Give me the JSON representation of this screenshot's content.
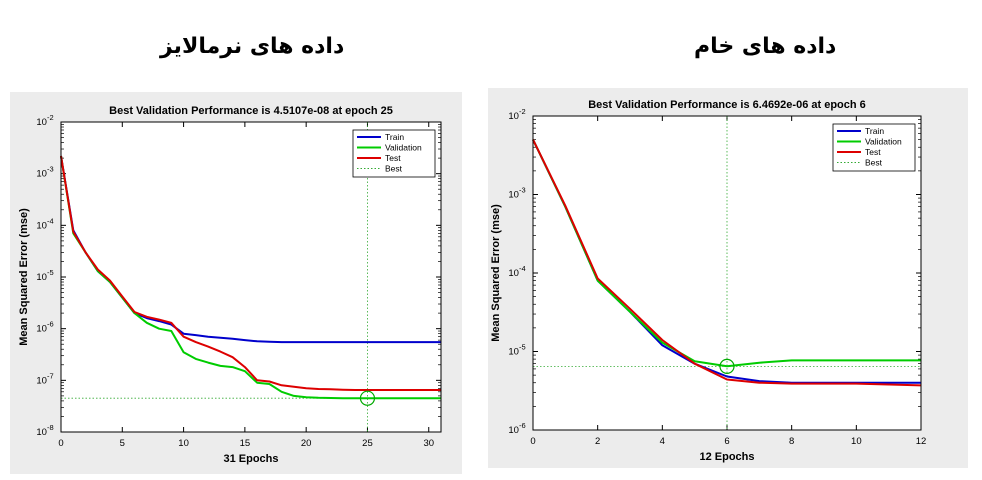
{
  "headings": {
    "left": "داده های نرمالایز",
    "right": "داده های خام"
  },
  "chart_data": [
    {
      "type": "line",
      "title": "Best Validation Performance is 4.5107e-08 at epoch 25",
      "xlabel": "31 Epochs",
      "ylabel": "Mean Squared Error  (mse)",
      "xlim": [
        0,
        31
      ],
      "xticks": [
        0,
        5,
        10,
        15,
        20,
        25,
        30
      ],
      "ylim": [
        1e-08,
        0.01
      ],
      "yscale": "log",
      "yticks": [
        {
          "value": 1e-08,
          "base": "10",
          "exp": "-8"
        },
        {
          "value": 1e-07,
          "base": "10",
          "exp": "-7"
        },
        {
          "value": 1e-06,
          "base": "10",
          "exp": "-6"
        },
        {
          "value": 1e-05,
          "base": "10",
          "exp": "-5"
        },
        {
          "value": 0.0001,
          "base": "10",
          "exp": "-4"
        },
        {
          "value": 0.001,
          "base": "10",
          "exp": "-3"
        },
        {
          "value": 0.01,
          "base": "10",
          "exp": "-2"
        }
      ],
      "legend_position": "top-right",
      "legend": [
        "Train",
        "Validation",
        "Test",
        "Best"
      ],
      "best": {
        "epoch": 25,
        "value": 4.5107e-08
      },
      "series": [
        {
          "name": "Train",
          "color": "#0000cc",
          "x": [
            0,
            1,
            2,
            3,
            4,
            5,
            6,
            7,
            8,
            9,
            10,
            11,
            12,
            13,
            14,
            15,
            16,
            17,
            18,
            19,
            20,
            21,
            22,
            23,
            24,
            25,
            26,
            27,
            28,
            29,
            30,
            31
          ],
          "y": [
            0.0022,
            8e-05,
            3e-05,
            1.3e-05,
            8e-06,
            4e-06,
            2e-06,
            1.6e-06,
            1.4e-06,
            1.2e-06,
            8e-07,
            7.5e-07,
            7e-07,
            6.7e-07,
            6.4e-07,
            6e-07,
            5.7e-07,
            5.6e-07,
            5.5e-07,
            5.5e-07,
            5.5e-07,
            5.5e-07,
            5.5e-07,
            5.5e-07,
            5.5e-07,
            5.5e-07,
            5.5e-07,
            5.5e-07,
            5.5e-07,
            5.5e-07,
            5.5e-07,
            5.5e-07
          ]
        },
        {
          "name": "Validation",
          "color": "#00cc00",
          "x": [
            0,
            1,
            2,
            3,
            4,
            5,
            6,
            7,
            8,
            9,
            10,
            11,
            12,
            13,
            14,
            15,
            16,
            17,
            18,
            19,
            20,
            21,
            22,
            23,
            24,
            25,
            26,
            27,
            28,
            29,
            30,
            31
          ],
          "y": [
            0.0022,
            7e-05,
            3e-05,
            1.3e-05,
            8e-06,
            4e-06,
            2e-06,
            1.3e-06,
            1e-06,
            9e-07,
            3.5e-07,
            2.6e-07,
            2.2e-07,
            1.9e-07,
            1.8e-07,
            1.5e-07,
            9e-08,
            8.5e-08,
            6e-08,
            5e-08,
            4.7e-08,
            4.6e-08,
            4.55e-08,
            4.5e-08,
            4.5e-08,
            4.51e-08,
            4.5e-08,
            4.5e-08,
            4.5e-08,
            4.5e-08,
            4.5e-08,
            4.5e-08
          ]
        },
        {
          "name": "Test",
          "color": "#dd0000",
          "x": [
            0,
            1,
            2,
            3,
            4,
            5,
            6,
            7,
            8,
            9,
            10,
            11,
            12,
            13,
            14,
            15,
            16,
            17,
            18,
            19,
            20,
            21,
            22,
            23,
            24,
            25,
            26,
            27,
            28,
            29,
            30,
            31
          ],
          "y": [
            0.0022,
            7.5e-05,
            3e-05,
            1.4e-05,
            8.5e-06,
            4.2e-06,
            2.1e-06,
            1.7e-06,
            1.5e-06,
            1.3e-06,
            7e-07,
            5.5e-07,
            4.5e-07,
            3.6e-07,
            2.8e-07,
            1.8e-07,
            1e-07,
            9.5e-08,
            8e-08,
            7.5e-08,
            7e-08,
            6.8e-08,
            6.7e-08,
            6.6e-08,
            6.5e-08,
            6.5e-08,
            6.5e-08,
            6.5e-08,
            6.5e-08,
            6.5e-08,
            6.5e-08,
            6.5e-08
          ]
        }
      ]
    },
    {
      "type": "line",
      "title": "Best Validation Performance is 6.4692e-06 at epoch 6",
      "xlabel": "12 Epochs",
      "ylabel": "Mean Squared Error  (mse)",
      "xlim": [
        0,
        12
      ],
      "xticks": [
        0,
        2,
        4,
        6,
        8,
        10,
        12
      ],
      "ylim": [
        1e-06,
        0.01
      ],
      "yscale": "log",
      "yticks": [
        {
          "value": 1e-06,
          "base": "10",
          "exp": "-6"
        },
        {
          "value": 1e-05,
          "base": "10",
          "exp": "-5"
        },
        {
          "value": 0.0001,
          "base": "10",
          "exp": "-4"
        },
        {
          "value": 0.001,
          "base": "10",
          "exp": "-3"
        },
        {
          "value": 0.01,
          "base": "10",
          "exp": "-2"
        }
      ],
      "legend_position": "top-right",
      "legend": [
        "Train",
        "Validation",
        "Test",
        "Best"
      ],
      "best": {
        "epoch": 6,
        "value": 6.4692e-06
      },
      "series": [
        {
          "name": "Train",
          "color": "#0000cc",
          "x": [
            0,
            1,
            2,
            3,
            4,
            5,
            6,
            7,
            8,
            9,
            10,
            11,
            12
          ],
          "y": [
            0.005,
            0.0007,
            8e-05,
            3.2e-05,
            1.2e-05,
            7e-06,
            4.8e-06,
            4.2e-06,
            4e-06,
            4e-06,
            4e-06,
            4e-06,
            4e-06
          ]
        },
        {
          "name": "Validation",
          "color": "#00cc00",
          "x": [
            0,
            1,
            2,
            3,
            4,
            5,
            6,
            7,
            8,
            9,
            10,
            11,
            12
          ],
          "y": [
            0.005,
            0.0007,
            8e-05,
            3.2e-05,
            1.3e-05,
            7.5e-06,
            6.47e-06,
            7.2e-06,
            7.7e-06,
            7.7e-06,
            7.7e-06,
            7.7e-06,
            7.7e-06
          ]
        },
        {
          "name": "Test",
          "color": "#dd0000",
          "x": [
            0,
            1,
            2,
            3,
            4,
            5,
            6,
            7,
            8,
            9,
            10,
            11,
            12
          ],
          "y": [
            0.005,
            0.00072,
            8.5e-05,
            3.5e-05,
            1.4e-05,
            7e-06,
            4.4e-06,
            4e-06,
            3.9e-06,
            3.9e-06,
            3.9e-06,
            3.8e-06,
            3.7e-06
          ]
        }
      ]
    }
  ]
}
